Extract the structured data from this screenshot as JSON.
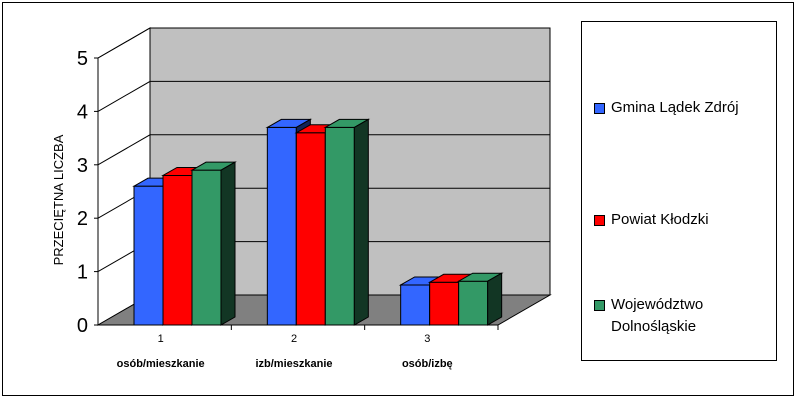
{
  "chart_data": {
    "type": "bar",
    "ylabel": "PRZECIĘTNA LICZBA",
    "ylim": [
      0,
      5
    ],
    "yticks": [
      "0",
      "1",
      "2",
      "3",
      "4",
      "5"
    ],
    "categories": [
      "1",
      "2",
      "3"
    ],
    "category_labels": [
      "osób/mieszkanie",
      "izb/mieszkanie",
      "osób/izbę"
    ],
    "series": [
      {
        "name": "Gmina Lądek Zdrój",
        "values": [
          2.6,
          3.7,
          0.75
        ],
        "color": "#3366ff"
      },
      {
        "name": "Powiat Kłodzki",
        "values": [
          2.8,
          3.6,
          0.8
        ],
        "color": "#ff0000"
      },
      {
        "name": "Województwo Dolnośląskie",
        "values": [
          2.9,
          3.7,
          0.82
        ],
        "color": "#339966"
      }
    ],
    "legend_position": "right",
    "grid": true
  },
  "legend": {
    "items": [
      {
        "line1": "Gmina Lądek Zdrój",
        "line2": ""
      },
      {
        "line1": "Powiat Kłodzki",
        "line2": ""
      },
      {
        "line1": "Województwo",
        "line2": "Dolnośląskie"
      }
    ]
  }
}
